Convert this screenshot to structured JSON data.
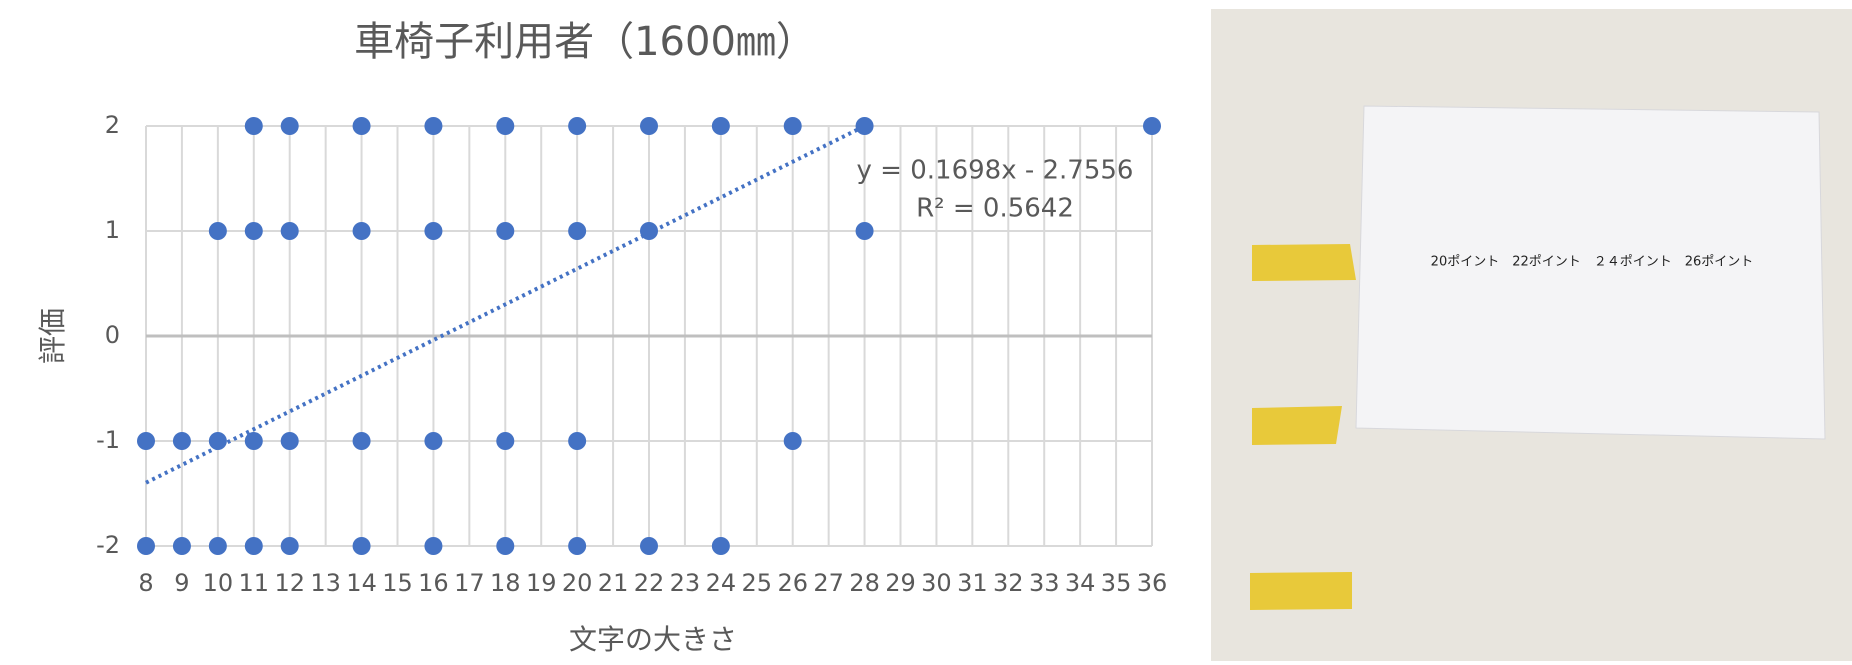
{
  "chart_data": {
    "type": "scatter",
    "title": "車椅子利用者（1600㎜）",
    "x_label": "文字の大きさ",
    "y_label": "評価",
    "series": [
      {
        "color": "#4472c4",
        "x": [
          11,
          12,
          14,
          16,
          18,
          20,
          22,
          24,
          26,
          28,
          36,
          10,
          11,
          12,
          14,
          16,
          18,
          20,
          22,
          28,
          8,
          9,
          10,
          11,
          12,
          14,
          16,
          18,
          20,
          26,
          8,
          9,
          10,
          11,
          12,
          14,
          16,
          18,
          20,
          22,
          24
        ],
        "values": [
          2,
          2,
          2,
          2,
          2,
          2,
          2,
          2,
          2,
          2,
          2,
          1,
          1,
          1,
          1,
          1,
          1,
          1,
          1,
          1,
          -1,
          -1,
          -1,
          -1,
          -1,
          -1,
          -1,
          -1,
          -1,
          -1,
          -2,
          -2,
          -2,
          -2,
          -2,
          -2,
          -2,
          -2,
          -2,
          -2,
          -2
        ]
      }
    ],
    "trendline": {
      "slope": 0.1698,
      "intercept": -2.7556,
      "x_range": [
        8,
        28
      ],
      "color": "#4472c4",
      "equation_label": "y = 0.1698x - 2.7556",
      "r2_label": "R² = 0.5642"
    },
    "xlim": [
      8,
      36
    ],
    "xticks": [
      8,
      9,
      10,
      11,
      12,
      13,
      14,
      15,
      16,
      17,
      18,
      19,
      20,
      21,
      22,
      23,
      24,
      25,
      26,
      27,
      28,
      29,
      30,
      31,
      32,
      33,
      34,
      35,
      36
    ],
    "ylim": [
      -2,
      2
    ],
    "yticks": [
      -2,
      -1,
      0,
      1,
      2
    ],
    "grid": true
  },
  "photo": {
    "paper_text": "20ポイント　22ポイント　２４ポイント　26ポイント"
  }
}
